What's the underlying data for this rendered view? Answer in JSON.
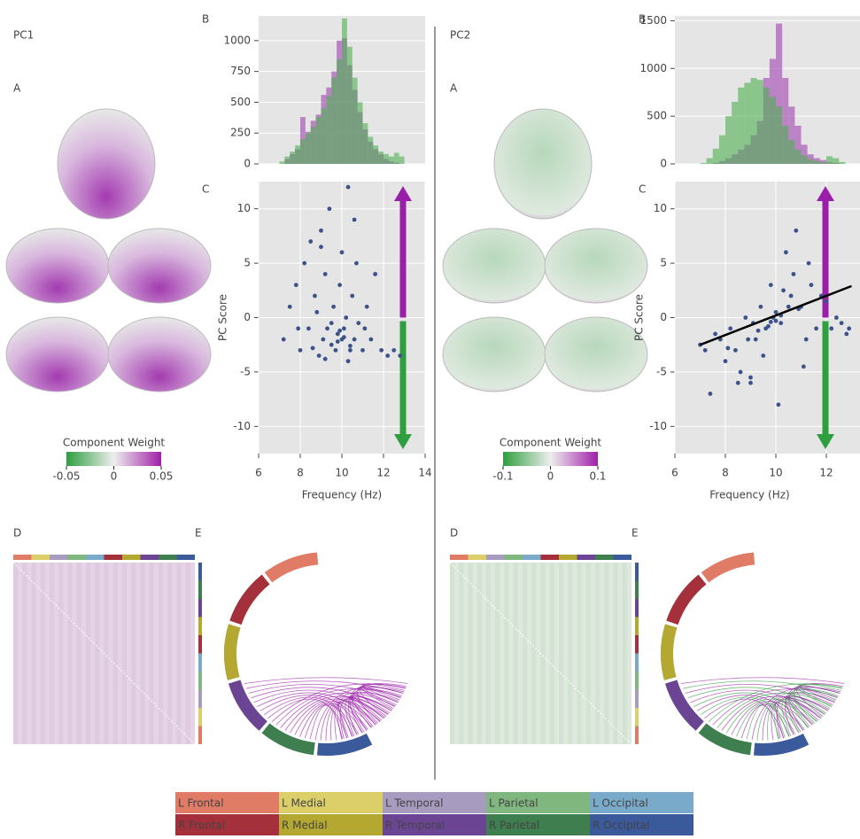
{
  "panels": [
    {
      "title": "PC1",
      "labels": [
        "A",
        "B",
        "C",
        "D",
        "E"
      ],
      "colorbar": {
        "title": "Component Weight",
        "lim": [
          -0.05,
          0.05
        ],
        "ticks": [
          -0.05,
          0,
          0.05
        ]
      }
    },
    {
      "title": "PC2",
      "labels": [
        "A",
        "B",
        "C",
        "D",
        "E"
      ],
      "colorbar": {
        "title": "Component Weight",
        "lim": [
          -0.1,
          0.1
        ],
        "ticks": [
          -0.1,
          0,
          0.1
        ]
      }
    }
  ],
  "legend": [
    {
      "name": "L Frontal",
      "color": "#e07b65"
    },
    {
      "name": "L Medial",
      "color": "#dccf6a"
    },
    {
      "name": "L Temporal",
      "color": "#a79bbf"
    },
    {
      "name": "L Parietal",
      "color": "#7fb77e"
    },
    {
      "name": "L Occipital",
      "color": "#79aac9"
    },
    {
      "name": "R Frontal",
      "color": "#a3303a"
    },
    {
      "name": "R Medial",
      "color": "#b5a831"
    },
    {
      "name": "R Temporal",
      "color": "#6b4593"
    },
    {
      "name": "R Parietal",
      "color": "#3e7e4f"
    },
    {
      "name": "R Occipital",
      "color": "#3a5a9c"
    }
  ],
  "chart_data": [
    {
      "type": "histogram",
      "bins": [
        7,
        7.25,
        7.5,
        7.75,
        8,
        8.25,
        8.5,
        8.75,
        9,
        9.25,
        9.5,
        9.75,
        10,
        10.25,
        10.5,
        10.75,
        11,
        11.25,
        11.5,
        11.75,
        12,
        12.25,
        12.5,
        12.75,
        13
      ],
      "series": [
        {
          "color": "#a040b0",
          "values": [
            0,
            40,
            80,
            120,
            380,
            260,
            350,
            400,
            560,
            620,
            750,
            1000,
            1020,
            800,
            600,
            420,
            280,
            180,
            120,
            80,
            40,
            20,
            10,
            0
          ]
        },
        {
          "color": "#4caf50",
          "values": [
            20,
            60,
            100,
            150,
            200,
            250,
            300,
            380,
            450,
            550,
            700,
            850,
            1180,
            950,
            700,
            500,
            330,
            220,
            150,
            100,
            80,
            60,
            90,
            60
          ]
        }
      ],
      "xlim": [
        6,
        14
      ],
      "ylim": [
        0,
        1200
      ],
      "yticks": [
        0,
        250,
        500,
        750,
        1000
      ],
      "grid": true
    },
    {
      "type": "scatter",
      "color": "#3b528b",
      "x": [
        7.2,
        7.5,
        7.8,
        8.0,
        8.2,
        8.4,
        8.5,
        8.7,
        8.9,
        9.0,
        9.1,
        9.2,
        9.3,
        9.4,
        9.5,
        9.6,
        9.7,
        9.8,
        9.9,
        10.0,
        10.0,
        10.1,
        10.2,
        10.3,
        10.4,
        10.5,
        10.6,
        10.7,
        10.8,
        11.0,
        11.2,
        11.4,
        11.6,
        11.9,
        12.2,
        12.5,
        12.8,
        9.8,
        10.1,
        9.5,
        10.4,
        9.2,
        8.8,
        10.6,
        9.9,
        8.6,
        11.1,
        10.3,
        9.0,
        7.9
      ],
      "y": [
        -2,
        1,
        3,
        -3,
        5,
        -1,
        7,
        2,
        -3.5,
        8,
        -2,
        4,
        -1,
        10,
        -2.5,
        1,
        -3,
        -1.5,
        3,
        -2,
        6,
        -1,
        0,
        12,
        -3,
        2,
        -2,
        5,
        -0.5,
        -3,
        1,
        -2,
        4,
        -3,
        -3.5,
        -3,
        -3.5,
        -2.2,
        -1.8,
        -0.5,
        -2.6,
        -3.8,
        0.5,
        9,
        -1.2,
        -2.8,
        -1,
        -4,
        6.5,
        -1
      ],
      "xlim": [
        6,
        14
      ],
      "ylim": [
        -12.5,
        12.5
      ],
      "xticks": [
        6,
        8,
        10,
        12,
        14
      ],
      "yticks": [
        -10,
        -5,
        0,
        5,
        10
      ],
      "xlabel": "Frequency (Hz)",
      "ylabel": "PC Score",
      "grid": true
    },
    {
      "type": "histogram",
      "bins": [
        7,
        7.25,
        7.5,
        7.75,
        8,
        8.25,
        8.5,
        8.75,
        9,
        9.25,
        9.5,
        9.75,
        10,
        10.25,
        10.5,
        10.75,
        11,
        11.25,
        11.5,
        11.75,
        12,
        12.25,
        12.5,
        12.75,
        13
      ],
      "series": [
        {
          "color": "#a040b0",
          "values": [
            0,
            0,
            10,
            30,
            60,
            100,
            150,
            200,
            300,
            450,
            900,
            1100,
            1470,
            900,
            600,
            400,
            200,
            100,
            60,
            40,
            20,
            10,
            0,
            0
          ]
        },
        {
          "color": "#4caf50",
          "values": [
            10,
            60,
            160,
            300,
            500,
            650,
            800,
            850,
            900,
            880,
            800,
            700,
            600,
            400,
            250,
            150,
            90,
            50,
            30,
            20,
            80,
            60,
            20,
            0
          ]
        }
      ],
      "xlim": [
        6,
        14
      ],
      "ylim": [
        0,
        1550
      ],
      "yticks": [
        0,
        500,
        1000,
        1500
      ],
      "grid": true
    },
    {
      "type": "scatter",
      "color": "#3b528b",
      "x": [
        7.0,
        7.2,
        7.4,
        7.6,
        7.8,
        8.0,
        8.2,
        8.4,
        8.6,
        8.8,
        9.0,
        9.2,
        9.4,
        9.6,
        9.8,
        10.0,
        10.2,
        10.4,
        10.6,
        10.8,
        11.0,
        11.2,
        11.4,
        11.6,
        11.8,
        12.0,
        12.2,
        12.4,
        12.6,
        12.9,
        8.5,
        9.1,
        9.5,
        9.9,
        10.1,
        10.3,
        10.7,
        11.1,
        9.3,
        8.9,
        10.0,
        10.5,
        9.7,
        11.3,
        8.1,
        9.0,
        10.9,
        10.2,
        9.8,
        12.8
      ],
      "y": [
        -2.5,
        -3,
        -7,
        -1.5,
        -2,
        -4,
        -1,
        -3,
        -5,
        0,
        -6,
        -2,
        1,
        -1,
        3,
        0.5,
        -0.5,
        6,
        2,
        8,
        1,
        -2,
        3,
        -1,
        2,
        1.5,
        -1,
        0,
        -0.5,
        -1,
        -6,
        -0.5,
        -3.5,
        0,
        -8,
        2.5,
        4,
        -4.5,
        -1.2,
        -2,
        -0.3,
        1,
        -0.8,
        5,
        -2.8,
        -5.5,
        0.8,
        0.2,
        -0.4,
        -1.5
      ],
      "fit": {
        "x": [
          7,
          13
        ],
        "y": [
          -2.5,
          2.9
        ],
        "color": "#000000"
      },
      "xlim": [
        6,
        14
      ],
      "ylim": [
        -12.5,
        12.5
      ],
      "xticks": [
        6,
        8,
        10,
        12,
        14
      ],
      "yticks": [
        -10,
        -5,
        0,
        5,
        10
      ],
      "xlabel": "Frequency (Hz)",
      "ylabel": "PC Score",
      "grid": true
    }
  ]
}
